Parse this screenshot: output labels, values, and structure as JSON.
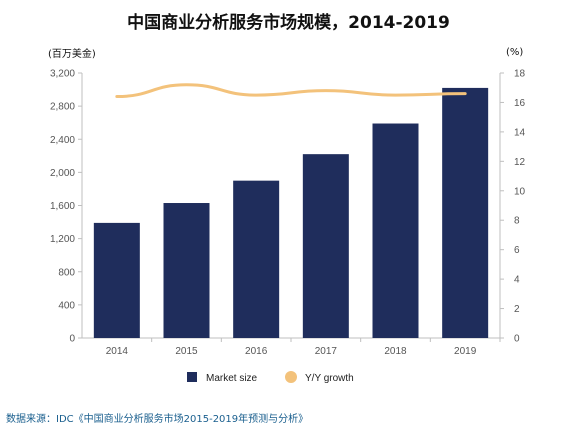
{
  "title": "中国商业分析服务市场规模，2014-2019",
  "source": "数据来源：IDC《中国商业分析服务市场2015-2019年预测与分析》",
  "colors": {
    "bar": "#1f2d5c",
    "line": "#f3c27b",
    "background": "#ffffff",
    "page": "#eef6f8"
  },
  "chart_data": {
    "type": "bar",
    "categories": [
      "2014",
      "2015",
      "2016",
      "2017",
      "2018",
      "2019"
    ],
    "series": [
      {
        "name": "Market size",
        "type": "bar",
        "axis": "left",
        "values": [
          1390,
          1630,
          1900,
          2220,
          2590,
          3020
        ]
      },
      {
        "name": "Y/Y growth",
        "type": "line",
        "axis": "right",
        "values": [
          16.4,
          17.2,
          16.5,
          16.8,
          16.5,
          16.6
        ]
      }
    ],
    "ylabel": "(百万美金)",
    "ylim": [
      0,
      3200
    ],
    "yticks": [
      "0",
      "400",
      "800",
      "1,200",
      "1,600",
      "2,000",
      "2,400",
      "2,800",
      "3,200"
    ],
    "y2label": "(%)",
    "y2lim": [
      0,
      18
    ],
    "y2ticks": [
      "0",
      "2",
      "4",
      "6",
      "8",
      "10",
      "12",
      "14",
      "16",
      "18"
    ],
    "grid": false,
    "legend_position": "bottom"
  }
}
